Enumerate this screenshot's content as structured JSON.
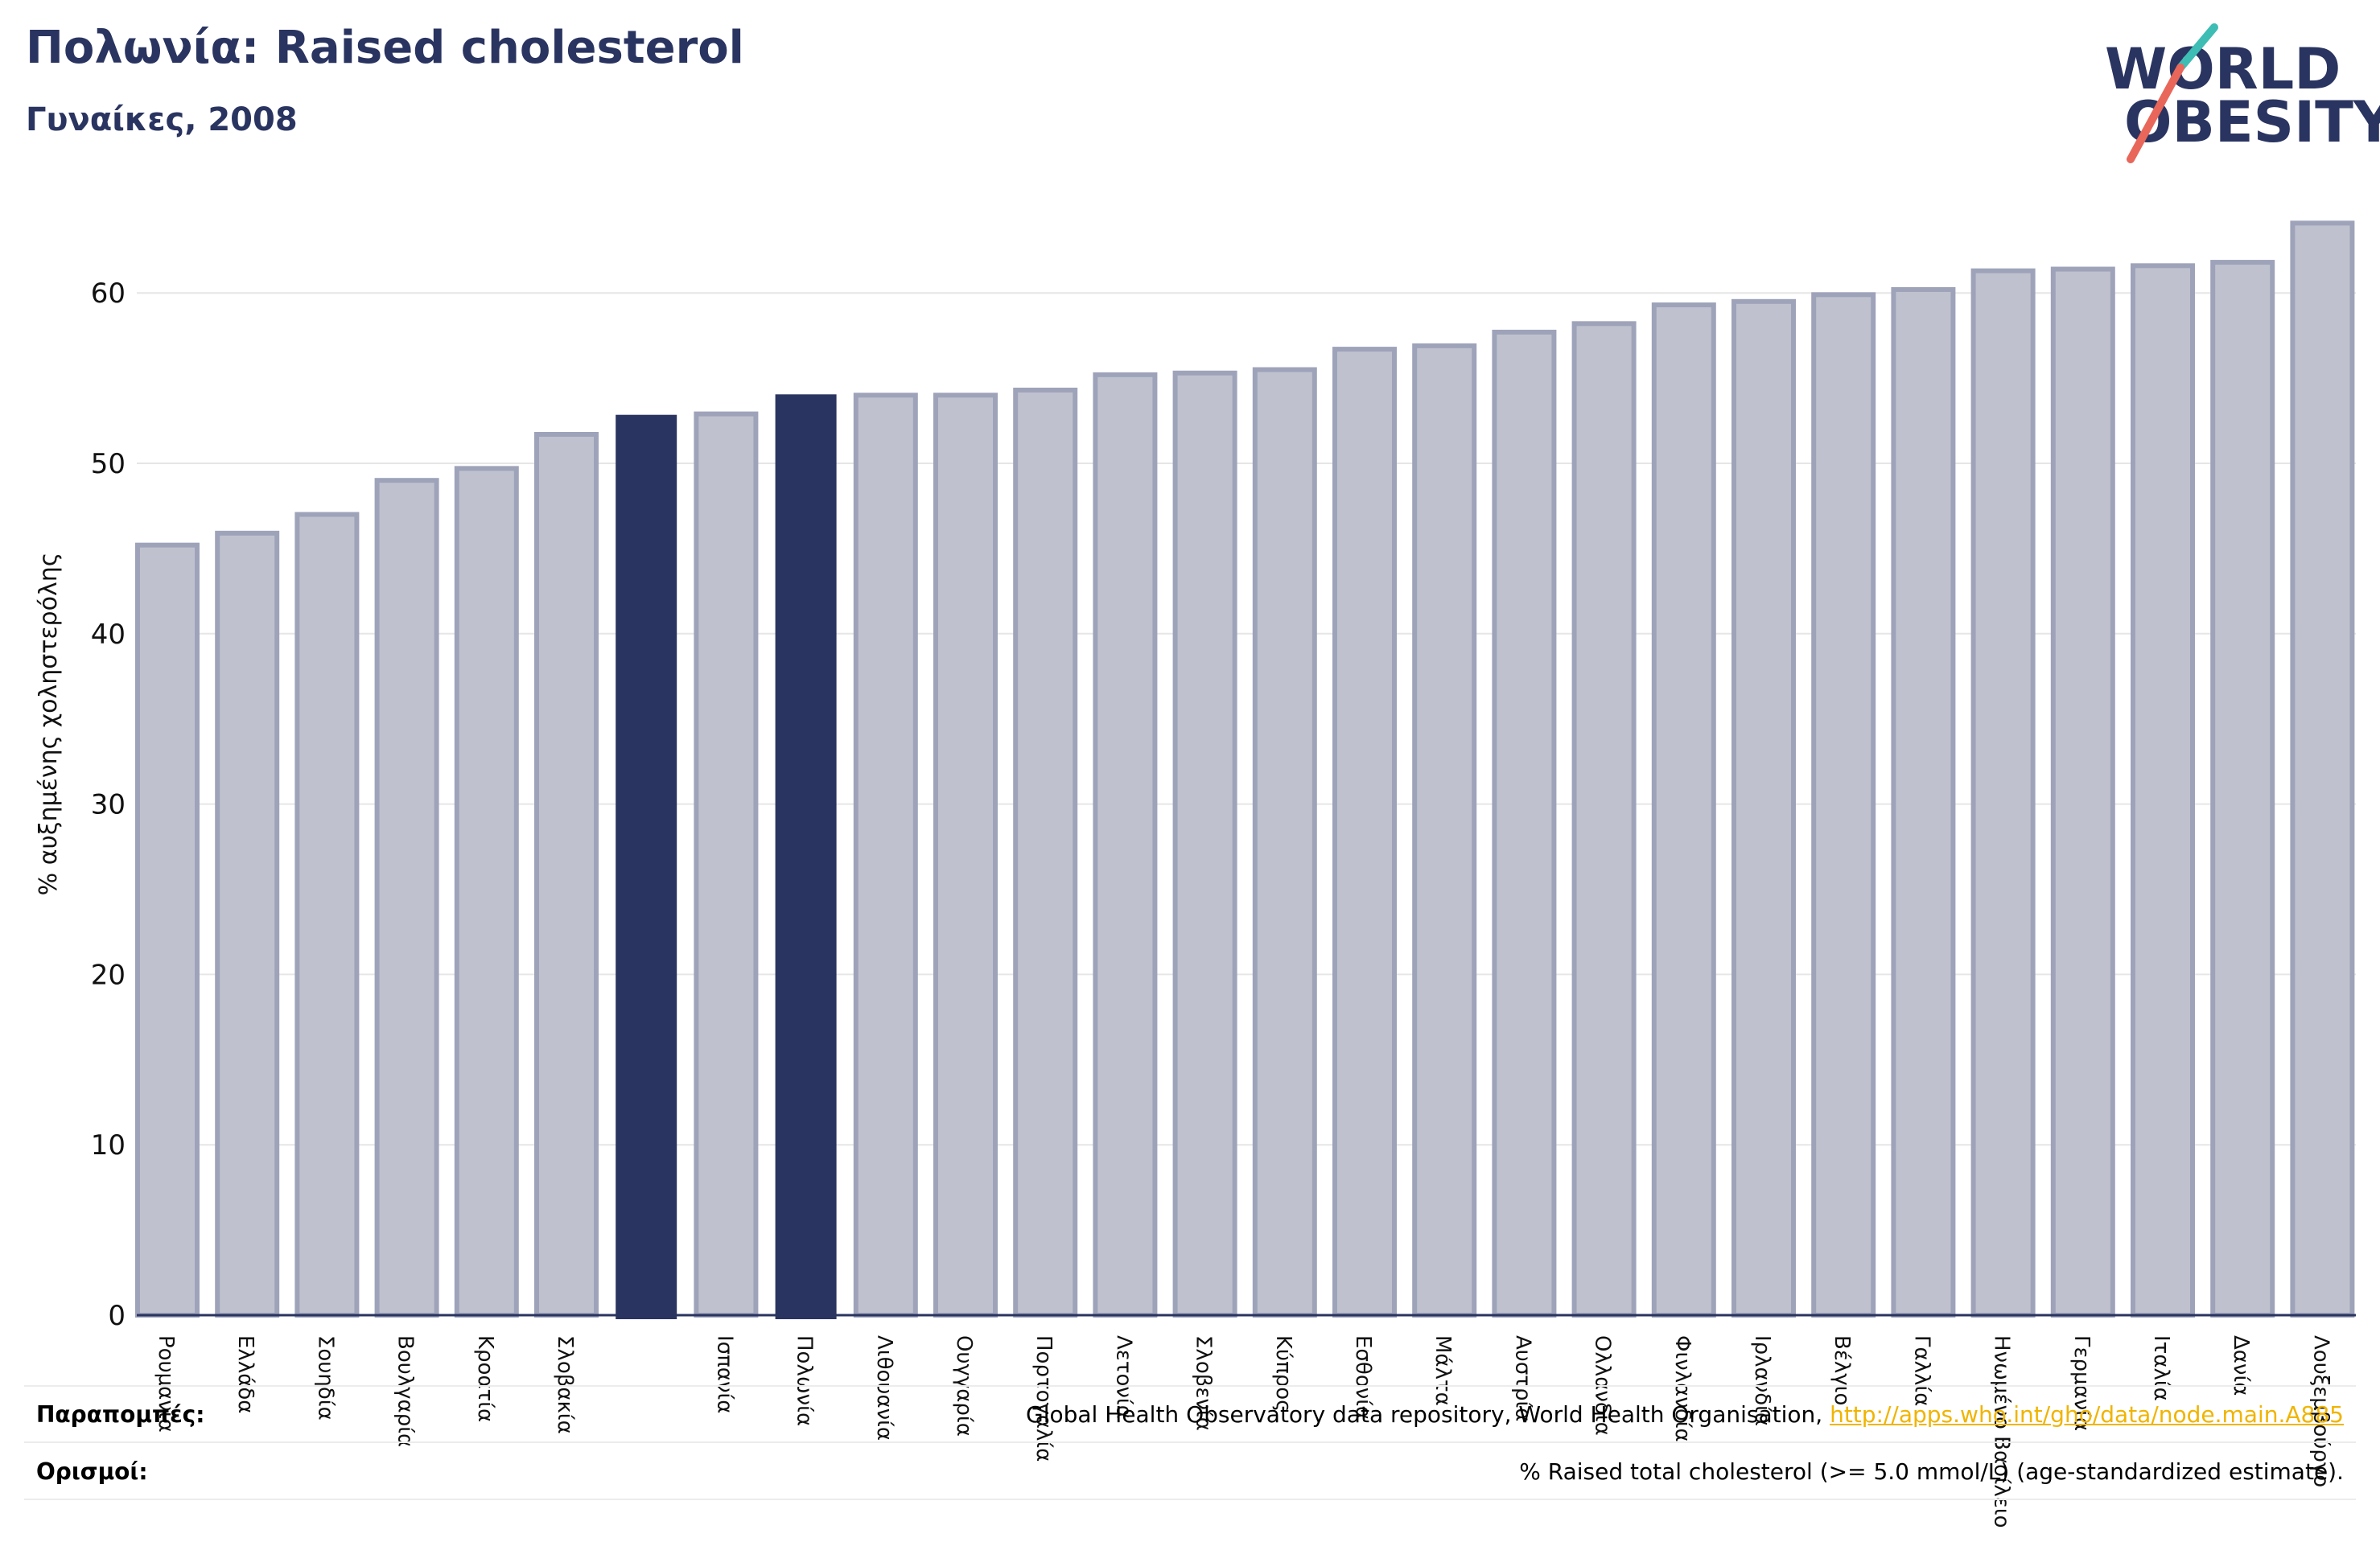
{
  "header": {
    "title": "Πολωνία: Raised cholesterol",
    "subtitle": "Γυναίκες, 2008"
  },
  "logo": {
    "line1": "WORLD",
    "line2": "OBESITY",
    "text_color": "#2a3460",
    "slash_top_color": "#3dbdb4",
    "slash_bottom_color": "#e8675a"
  },
  "footer": {
    "references_label": "Παραπομπές:",
    "references_text": "Global Health Observatory data repository, World Health Organisation, ",
    "references_link": "http://apps.who.int/gho/data/node.main.A885",
    "definitions_label": "Ορισμοί:",
    "definitions_text": "% Raised total cholesterol (>= 5.0 mmol/L) (age-standardized estimate)."
  },
  "chart_data": {
    "type": "bar",
    "title": "Πολωνία: Raised cholesterol",
    "subtitle": "Γυναίκες, 2008",
    "xlabel": "",
    "ylabel": "% αυξημένης χοληστερόλης",
    "ylim": [
      0,
      65
    ],
    "yticks": [
      0,
      10,
      20,
      30,
      40,
      50,
      60
    ],
    "grid": true,
    "categories": [
      "Ρουμανία",
      "Ελλάδα",
      "Σουηδία",
      "Βουλγαρία",
      "Κροατία",
      "Σλοβακία",
      "",
      "Ισπανία",
      "Πολωνία",
      "Λιθουανία",
      "Ουγγαρία",
      "Πορτογαλία",
      "Λετονία",
      "Σλοβενία",
      "Κύπρος",
      "Εσθονία",
      "Μάλτα",
      "Αυστρία",
      "Ολλανδία",
      "Φινλανδία",
      "Ιρλανδία",
      "Βέλγιο",
      "Γαλλία",
      "Ηνωμένο Βασίλειο",
      "Γερμανία",
      "Ιταλία",
      "Δανία",
      "Λουξεμβούργο"
    ],
    "values": [
      45.2,
      45.9,
      47.0,
      49.0,
      49.7,
      51.7,
      52.8,
      52.9,
      54.0,
      54.0,
      54.0,
      54.3,
      55.2,
      55.3,
      55.5,
      56.7,
      56.9,
      57.7,
      58.2,
      59.3,
      59.5,
      59.9,
      60.2,
      61.3,
      61.4,
      61.6,
      61.8,
      64.1
    ],
    "highlighted": [
      6,
      8
    ],
    "colors": {
      "bar": "#bfc2ce",
      "bar_edge": "#9ea3ba",
      "highlight": "#2a3460"
    }
  }
}
